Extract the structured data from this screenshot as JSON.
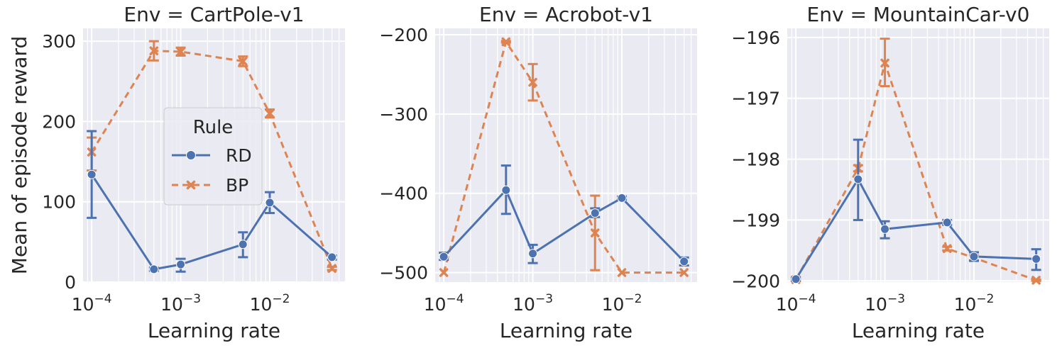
{
  "figure": {
    "ylabel": "Mean of episode reward",
    "legend": {
      "title": "Rule",
      "placement": "inside first panel, center",
      "entries": [
        {
          "label": "RD",
          "color": "#4c72b0",
          "marker": "circle",
          "dash": "solid"
        },
        {
          "label": "BP",
          "color": "#dd8452",
          "marker": "x",
          "dash": "dashed"
        }
      ]
    },
    "colors": {
      "background": "#eaeaf2",
      "grid": "#ffffff"
    }
  },
  "chart_data": [
    {
      "type": "line",
      "title": "Env = CartPole-v1",
      "xlabel": "Learning rate",
      "x_scale": "log",
      "x_ticks": [
        {
          "value": 0.0001,
          "base": "10",
          "exp": "−4"
        },
        {
          "value": 0.001,
          "base": "10",
          "exp": "−3"
        },
        {
          "value": 0.01,
          "base": "10",
          "exp": "−2"
        }
      ],
      "xlim": [
        8e-05,
        0.07
      ],
      "ylim": [
        0,
        316
      ],
      "y_ticks": [
        "0",
        "100",
        "200",
        "300"
      ],
      "y_tick_values": [
        0,
        100,
        200,
        300
      ],
      "grid": true,
      "series": [
        {
          "name": "RD",
          "x": [
            0.0001,
            0.0005,
            0.001,
            0.005,
            0.01,
            0.05
          ],
          "values": [
            134,
            16,
            22,
            47,
            99,
            31
          ],
          "err_low": [
            80,
            14,
            13,
            31,
            86,
            28
          ],
          "err_high": [
            188,
            18,
            29,
            62,
            112,
            33
          ]
        },
        {
          "name": "BP",
          "x": [
            0.0001,
            0.0005,
            0.001,
            0.005,
            0.01,
            0.05
          ],
          "values": [
            162,
            288,
            287,
            275,
            210,
            17
          ],
          "err_low": [
            139,
            276,
            282,
            269,
            205,
            15
          ],
          "err_high": [
            180,
            300,
            292,
            281,
            215,
            19
          ]
        }
      ]
    },
    {
      "type": "line",
      "title": "Env = Acrobot-v1",
      "xlabel": "Learning rate",
      "x_scale": "log",
      "x_ticks": [
        {
          "value": 0.0001,
          "base": "10",
          "exp": "−4"
        },
        {
          "value": 0.001,
          "base": "10",
          "exp": "−3"
        },
        {
          "value": 0.01,
          "base": "10",
          "exp": "−2"
        }
      ],
      "xlim": [
        8e-05,
        0.07
      ],
      "ylim": [
        -512,
        -192
      ],
      "y_ticks": [
        "−500",
        "−400",
        "−300",
        "−200"
      ],
      "y_tick_values": [
        -500,
        -400,
        -300,
        -200
      ],
      "grid": true,
      "series": [
        {
          "name": "RD",
          "x": [
            0.0001,
            0.0005,
            0.001,
            0.005,
            0.01,
            0.05
          ],
          "values": [
            -480,
            -396,
            -476,
            -425,
            -406,
            -486
          ],
          "err_low": [
            -484,
            -426,
            -488,
            -430,
            -408,
            -491
          ],
          "err_high": [
            -475,
            -365,
            -465,
            -419,
            -404,
            -481
          ]
        },
        {
          "name": "BP",
          "x": [
            0.0001,
            0.0005,
            0.001,
            0.005,
            0.01,
            0.05
          ],
          "values": [
            -500,
            -209,
            -260,
            -450,
            -500,
            -500
          ],
          "err_low": [
            -500,
            -210,
            -283,
            -497,
            -500,
            -500
          ],
          "err_high": [
            -500,
            -208,
            -237,
            -403,
            -500,
            -500
          ]
        }
      ]
    },
    {
      "type": "line",
      "title": "Env = MountainCar-v0",
      "xlabel": "Learning rate",
      "x_scale": "log",
      "x_ticks": [
        {
          "value": 0.0001,
          "base": "10",
          "exp": "−4"
        },
        {
          "value": 0.001,
          "base": "10",
          "exp": "−3"
        },
        {
          "value": 0.01,
          "base": "10",
          "exp": "−2"
        }
      ],
      "xlim": [
        8e-05,
        0.07
      ],
      "ylim": [
        -200.02,
        -195.85
      ],
      "y_ticks": [
        "−200",
        "−199",
        "−198",
        "−197",
        "−196"
      ],
      "y_tick_values": [
        -200,
        -199,
        -198,
        -197,
        -196
      ],
      "grid": true,
      "series": [
        {
          "name": "RD",
          "x": [
            0.0001,
            0.0005,
            0.001,
            0.005,
            0.01,
            0.05
          ],
          "values": [
            -199.97,
            -198.33,
            -199.15,
            -199.04,
            -199.6,
            -199.64
          ],
          "err_low": [
            -200.0,
            -199.0,
            -199.3,
            -199.08,
            -199.67,
            -199.82
          ],
          "err_high": [
            -199.94,
            -197.68,
            -199.02,
            -199.0,
            -199.53,
            -199.48
          ]
        },
        {
          "name": "BP",
          "x": [
            0.0001,
            0.0005,
            0.001,
            0.005,
            0.01,
            0.05
          ],
          "values": [
            -199.98,
            -198.15,
            -196.42,
            -199.47,
            -199.62,
            -199.99
          ],
          "err_low": [
            -200.0,
            -198.2,
            -196.8,
            -199.5,
            -199.66,
            -200.0
          ],
          "err_high": [
            -199.96,
            -198.1,
            -196.02,
            -199.44,
            -199.58,
            -199.98
          ]
        }
      ]
    }
  ]
}
